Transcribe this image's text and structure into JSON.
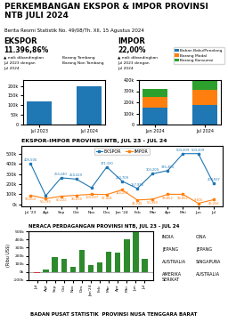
{
  "title": "PERKEMBANGAN EKSPOR & IMPOR PROVINSI NTB JULI 2024",
  "subtitle": "Berita Resmi Statistik No. 49/08/Th. XII, 15 Agustus 2024",
  "annotations": [
    "INDIA",
    "JEPANG",
    "AUSTRALIA",
    "AMERIKA\nSERIKAT",
    "CINA",
    "JEPANG",
    "SINGAPURA",
    "AUSTRALIA",
    "BADAN PUSAT STATISTIK  PROVINSI NUSA TENGGARA BARAT"
  ],
  "chart_data": [
    {
      "type": "bar",
      "title": "EKSPOR",
      "annotations": [
        "11.396,86%",
        "▲ naik dibandingkan",
        "Jul 2023 dengan",
        "Jul 2024",
        "Barang Tambang",
        "Barang Non Tambang"
      ],
      "categories": [
        "Jul 2023",
        "Jul 2024"
      ],
      "values": [
        120000,
        200000
      ],
      "ylim": [
        0,
        230000
      ],
      "yticks": [
        0,
        {
          "value": 50000,
          "label": "50k"
        },
        {
          "value": 100000,
          "label": "100k"
        },
        {
          "value": 150000,
          "label": "150k"
        },
        {
          "value": 200000,
          "label": "200k"
        }
      ]
    },
    {
      "type": "bar",
      "stacked": true,
      "title": "IMPOR",
      "annotations": [
        "22,00%",
        "▲ naik dibandingkan",
        "Jul 2023 dengan",
        "Jul 2024"
      ],
      "categories": [
        "Jun 2024",
        "Jul 2024"
      ],
      "series": [
        {
          "name": "Bahan Baku/Penolong",
          "values": [
            150000,
            180000
          ]
        },
        {
          "name": "Barang Modal",
          "values": [
            100000,
            130000
          ]
        },
        {
          "name": "Barang Konsumsi",
          "values": [
            70000,
            90000
          ]
        }
      ],
      "legend": "upper right",
      "ylim": [
        0,
        400000
      ],
      "yticks": [
        0,
        {
          "value": 100000,
          "label": "100k"
        },
        {
          "value": 200000,
          "label": "200k"
        },
        {
          "value": 300000,
          "label": "300k"
        },
        {
          "value": 400000,
          "label": "400k"
        }
      ]
    },
    {
      "type": "line",
      "title": "EKSPOR-IMPOR PROVINSI NTB, JUL 23 - JUL 24",
      "categories": [
        "Jul '23",
        "Agt",
        "Sep",
        "Okt",
        "Nov",
        "Des",
        "Jan '24",
        "Feb",
        "Mar",
        "Apr",
        "Mei",
        "Jun",
        "Jul"
      ],
      "series": [
        {
          "name": "EKSPOR",
          "marker": "square",
          "values": [
            405506,
            85350,
            263240,
            250429,
            164129,
            371330,
            230709,
            157990,
            303209,
            335354,
            503209,
            503209,
            208837
          ],
          "value_labels": [
            "405,506",
            null,
            "263,240",
            "250,429",
            null,
            "371,330",
            "230,709",
            "157,990",
            "303,209",
            "335,354",
            "503,209",
            "503,209",
            "208,837"
          ]
        },
        {
          "name": "IMPOR",
          "marker": "square",
          "values": [
            90004,
            56799,
            80122,
            90034,
            100007,
            97424,
            144250,
            43240,
            50989,
            99852,
            99852,
            9816,
            46256
          ],
          "value_labels": [
            "90,004",
            "56,799",
            "80,122",
            "90,034",
            "100,007",
            "97,424",
            "144,250",
            "43,240",
            "50,989",
            "99,852",
            "99,852",
            "9,816",
            "46,256"
          ]
        }
      ],
      "data_labels": true,
      "legend": "upper center",
      "ylim": [
        -20000,
        580000
      ],
      "yticks": [
        {
          "value": 0,
          "label": "0k"
        },
        {
          "value": 100000,
          "label": "100k"
        },
        {
          "value": 200000,
          "label": "200k"
        },
        {
          "value": 300000,
          "label": "300k"
        },
        {
          "value": 400000,
          "label": "400k"
        },
        {
          "value": 500000,
          "label": "500k"
        }
      ]
    },
    {
      "type": "bar",
      "title": "NERACA PERDAGANGAN PROVINSI NTB, JUL 23 - JUL 24",
      "y_label": "(Ribu US$)",
      "categories": [
        "Jul",
        "Agt",
        "Sep",
        "Okt",
        "Nov",
        "Des",
        "Jan'24",
        "Feb",
        "Mar",
        "Apr",
        "Mei",
        "Jun",
        "Jul"
      ],
      "values": [
        -9070,
        28459,
        183118,
        160395,
        64122,
        273906,
        86459,
        114750,
        252220,
        235502,
        403357,
        493393,
        162581
      ],
      "colors": [
        "#cc3333",
        "#2d8a2d",
        "#2d8a2d",
        "#2d8a2d",
        "#2d8a2d",
        "#2d8a2d",
        "#2d8a2d",
        "#2d8a2d",
        "#2d8a2d",
        "#2d8a2d",
        "#2d8a2d",
        "#2d8a2d",
        "#2d8a2d"
      ],
      "ylim": [
        -100000,
        500000
      ],
      "yticks": [
        {
          "value": -100000,
          "label": "-100k"
        },
        {
          "value": 0,
          "label": "0k"
        },
        {
          "value": 100000,
          "label": "100k"
        },
        {
          "value": 200000,
          "label": "200k"
        },
        {
          "value": 300000,
          "label": "300k"
        },
        {
          "value": 400000,
          "label": "400k"
        },
        {
          "value": 500000,
          "label": "500k"
        }
      ]
    }
  ]
}
